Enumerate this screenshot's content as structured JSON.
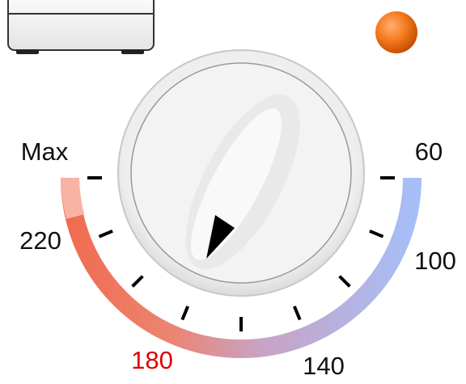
{
  "dial": {
    "labels": [
      {
        "text": "Max",
        "color": "#111111"
      },
      {
        "text": "220",
        "color": "#111111"
      },
      {
        "text": "180",
        "color": "#e00000"
      },
      {
        "text": "140",
        "color": "#111111"
      },
      {
        "text": "100",
        "color": "#111111"
      },
      {
        "text": "60",
        "color": "#111111"
      }
    ]
  }
}
